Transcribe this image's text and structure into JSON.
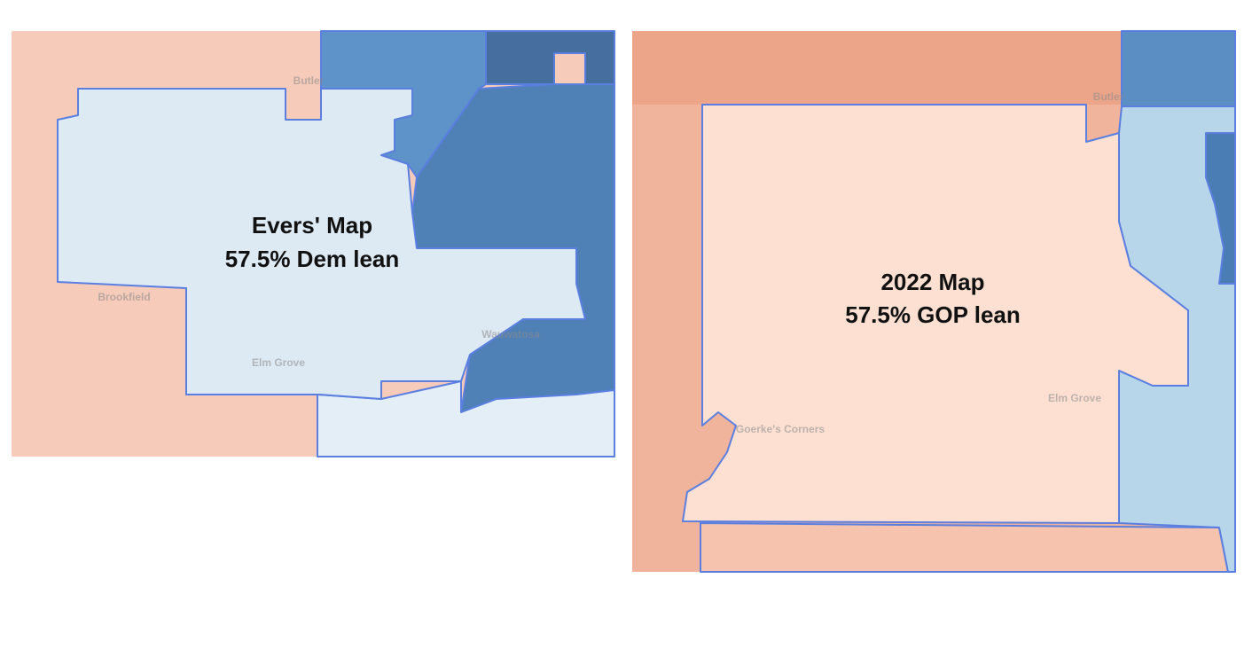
{
  "maps": [
    {
      "title": "Evers' Map",
      "caption": "57.5% Dem lean",
      "places": [
        "Butler",
        "Brookfield",
        "Wauwatosa",
        "Elm Grove"
      ]
    },
    {
      "title": "2022 Map",
      "caption": "57.5% GOP lean",
      "places": [
        "Butler",
        "Elm Grove",
        "Goerke's Corners"
      ]
    }
  ]
}
